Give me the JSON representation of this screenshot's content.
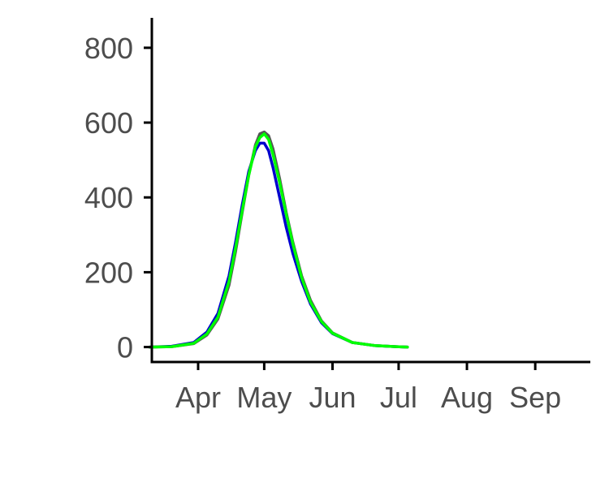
{
  "chart_data": {
    "type": "line",
    "title": "",
    "xlabel": "",
    "ylabel": "",
    "x_ticks": [
      "Apr",
      "May",
      "Jun",
      "Jul",
      "Aug",
      "Sep"
    ],
    "x_tick_dates": [
      "2020-04-01",
      "2020-05-01",
      "2020-06-01",
      "2020-07-01",
      "2020-08-01",
      "2020-09-01"
    ],
    "y_ticks": [
      0,
      200,
      400,
      600,
      800
    ],
    "xlim": [
      "2020-03-11",
      "2020-09-26"
    ],
    "ylim": [
      -40,
      880
    ],
    "grid": false,
    "legend": "none",
    "x": [
      "2020-03-10",
      "2020-03-20",
      "2020-03-30",
      "2020-04-05",
      "2020-04-10",
      "2020-04-15",
      "2020-04-18",
      "2020-04-21",
      "2020-04-24",
      "2020-04-27",
      "2020-04-29",
      "2020-05-01",
      "2020-05-03",
      "2020-05-05",
      "2020-05-08",
      "2020-05-11",
      "2020-05-14",
      "2020-05-18",
      "2020-05-22",
      "2020-05-27",
      "2020-06-01",
      "2020-06-10",
      "2020-06-20",
      "2020-06-30",
      "2020-07-05"
    ],
    "series": [
      {
        "color": "#0000cd",
        "values": [
          0,
          2,
          12,
          40,
          90,
          190,
          280,
          380,
          470,
          525,
          545,
          545,
          525,
          480,
          400,
          320,
          250,
          175,
          115,
          65,
          36,
          12,
          4,
          1,
          0
        ]
      },
      {
        "color": "#555555",
        "values": [
          0,
          1,
          9,
          32,
          75,
          165,
          255,
          360,
          460,
          540,
          570,
          575,
          565,
          530,
          450,
          360,
          280,
          190,
          125,
          70,
          38,
          12,
          4,
          1,
          0
        ]
      },
      {
        "color": "#00ff00",
        "values": [
          0,
          1,
          10,
          35,
          80,
          175,
          265,
          365,
          460,
          535,
          560,
          570,
          555,
          515,
          440,
          355,
          275,
          185,
          120,
          68,
          37,
          12,
          4,
          1,
          0
        ]
      }
    ]
  }
}
